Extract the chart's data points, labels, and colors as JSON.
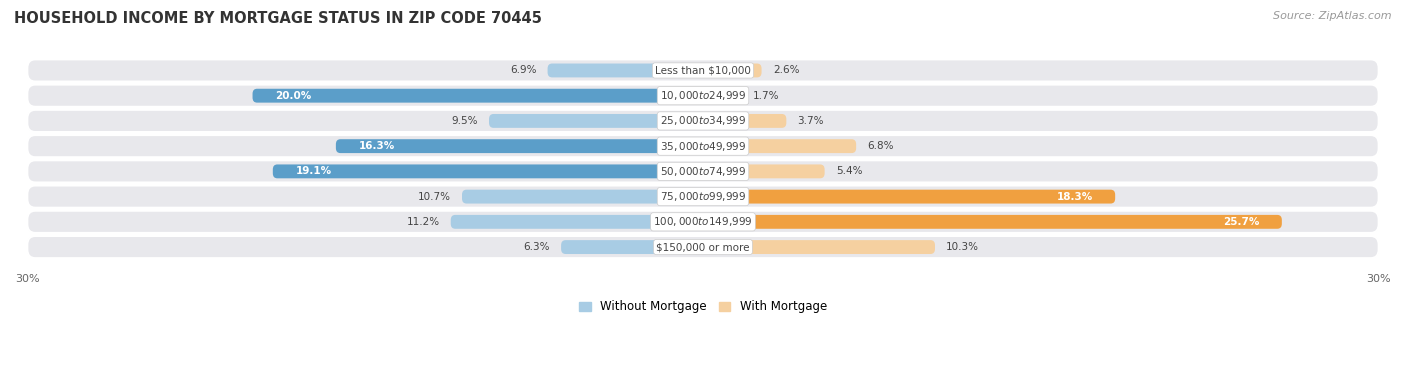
{
  "title": "HOUSEHOLD INCOME BY MORTGAGE STATUS IN ZIP CODE 70445",
  "source": "Source: ZipAtlas.com",
  "categories": [
    "Less than $10,000",
    "$10,000 to $24,999",
    "$25,000 to $34,999",
    "$35,000 to $49,999",
    "$50,000 to $74,999",
    "$75,000 to $99,999",
    "$100,000 to $149,999",
    "$150,000 or more"
  ],
  "without_mortgage": [
    6.9,
    20.0,
    9.5,
    16.3,
    19.1,
    10.7,
    11.2,
    6.3
  ],
  "with_mortgage": [
    2.6,
    1.7,
    3.7,
    6.8,
    5.4,
    18.3,
    25.7,
    10.3
  ],
  "color_without_light": "#a8cce4",
  "color_without_dark": "#5b9ec9",
  "color_with_light": "#f5d0a0",
  "color_with_dark": "#f0a040",
  "axis_limit": 30.0,
  "background_color": "#ffffff",
  "row_bg_color": "#e8e8ec",
  "title_color": "#333333",
  "source_color": "#999999",
  "label_color": "#444444",
  "title_fontsize": 10.5,
  "source_fontsize": 8,
  "cat_fontsize": 7.5,
  "val_fontsize": 7.5,
  "tick_fontsize": 8,
  "legend_fontsize": 8.5,
  "inside_label_threshold": 14.0
}
